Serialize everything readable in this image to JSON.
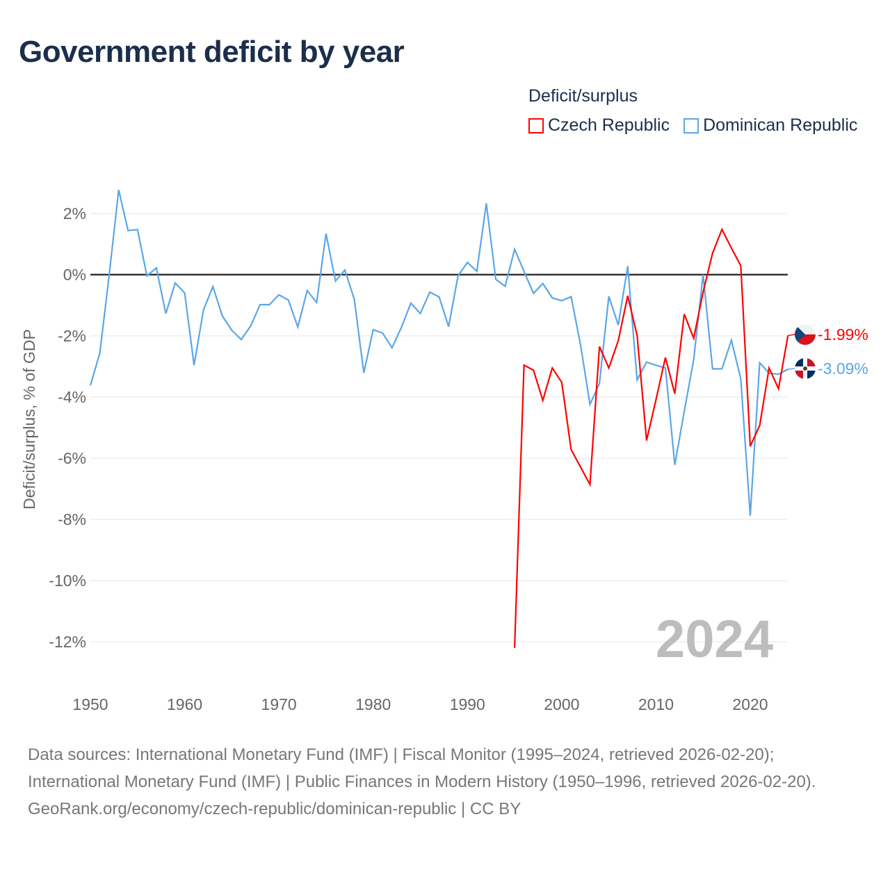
{
  "title": "Government deficit by year",
  "legend": {
    "title": "Deficit/surplus",
    "items": [
      {
        "label": "Czech Republic",
        "color": "#ff0000"
      },
      {
        "label": "Dominican Republic",
        "color": "#5aa6e8"
      }
    ]
  },
  "footer": {
    "sources": "Data sources: International Monetary Fund (IMF) | Fiscal Monitor (1995–2024, retrieved 2026-02-20); International Monetary Fund (IMF) | Public Finances in Modern History (1950–1996, retrieved 2026-02-20).",
    "credit": "GeoRank.org/economy/czech-republic/dominican-republic | CC BY"
  },
  "chart_data": {
    "type": "line",
    "title": "Government deficit by year",
    "xlabel": "",
    "ylabel": "Deficit/surplus, % of GDP",
    "xlim": [
      1950,
      2024
    ],
    "ylim": [
      -13,
      3
    ],
    "x_ticks": [
      1950,
      1960,
      1970,
      1980,
      1990,
      2000,
      2010,
      2020
    ],
    "x_tick_labels": [
      "1950",
      "1960",
      "1970",
      "1980",
      "1990",
      "2000",
      "2010",
      "2020"
    ],
    "y_ticks": [
      2,
      0,
      -2,
      -4,
      -6,
      -8,
      -10,
      -12
    ],
    "y_tick_labels": [
      "2%",
      "0%",
      "-2%",
      "-4%",
      "-6%",
      "-8%",
      "-10%",
      "-12%"
    ],
    "grid": true,
    "year_watermark": "2024",
    "series": [
      {
        "name": "Czech Republic",
        "color": "#ff0000",
        "start_year": 1995,
        "end_label": "-1.99%",
        "flag": "czech-flag",
        "values": [
          -12.2,
          -2.96,
          -3.12,
          -4.11,
          -3.05,
          -3.52,
          -5.72,
          -6.29,
          -6.86,
          -2.35,
          -3.05,
          -2.16,
          -0.69,
          -1.99,
          -5.42,
          -4.09,
          -2.71,
          -3.89,
          -1.29,
          -2.08,
          -0.57,
          0.7,
          1.48,
          0.87,
          0.29,
          -5.61,
          -4.93,
          -3.05,
          -3.73,
          -1.99
        ]
      },
      {
        "name": "Dominican Republic",
        "color": "#5aa6e8",
        "start_year": 1950,
        "end_label": "-3.09%",
        "flag": "dominican-flag",
        "values": [
          -3.62,
          -2.56,
          0.0,
          2.77,
          1.44,
          1.47,
          -0.04,
          0.22,
          -1.27,
          -0.27,
          -0.6,
          -2.96,
          -1.15,
          -0.39,
          -1.35,
          -1.82,
          -2.12,
          -1.68,
          -0.98,
          -0.98,
          -0.66,
          -0.83,
          -1.71,
          -0.52,
          -0.91,
          1.34,
          -0.21,
          0.15,
          -0.81,
          -3.21,
          -1.8,
          -1.91,
          -2.39,
          -1.72,
          -0.93,
          -1.27,
          -0.57,
          -0.73,
          -1.7,
          -0.04,
          0.4,
          0.11,
          2.33,
          -0.15,
          -0.38,
          0.83,
          0.11,
          -0.61,
          -0.29,
          -0.76,
          -0.85,
          -0.72,
          -2.3,
          -4.24,
          -3.56,
          -0.71,
          -1.65,
          0.28,
          -3.44,
          -2.86,
          -2.96,
          -3.05,
          -6.22,
          -4.47,
          -2.77,
          0.0,
          -3.08,
          -3.08,
          -2.14,
          -3.41,
          -7.88,
          -2.88,
          -3.22,
          -3.26,
          -3.09
        ]
      }
    ]
  }
}
